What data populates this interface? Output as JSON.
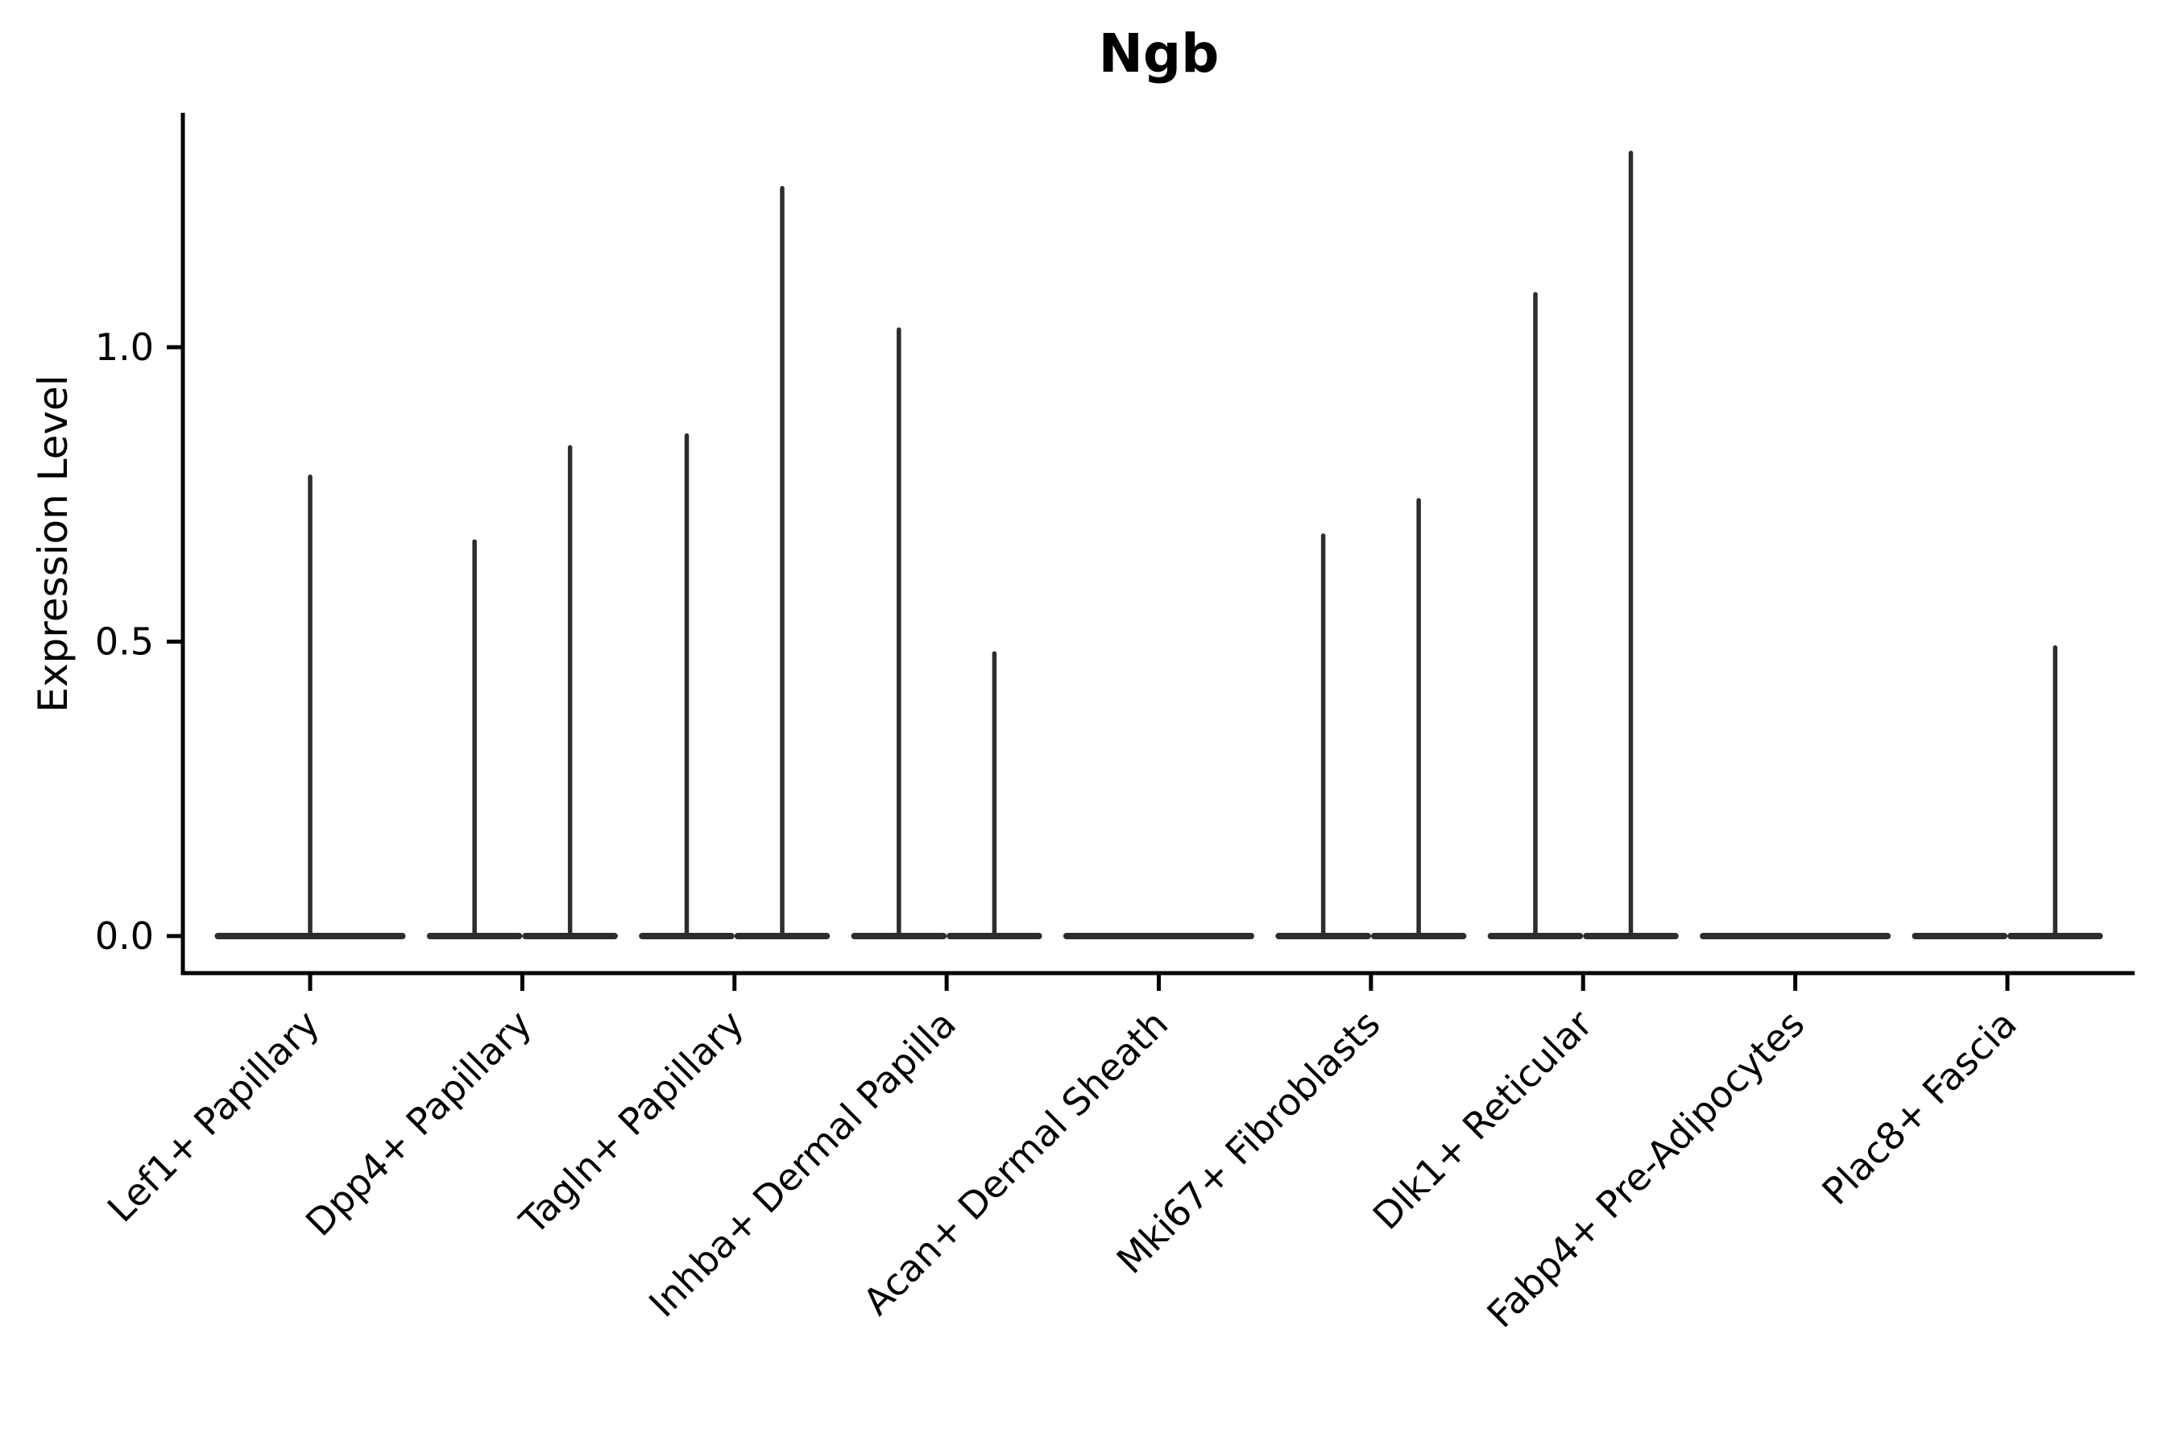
{
  "chart_data": {
    "type": "violin",
    "title": "Ngb",
    "xlabel": "",
    "ylabel": "Expression Level",
    "grid": false,
    "legend": "none",
    "background": "#ffffff",
    "axis_color": "#000000",
    "violin_color": "#2d2d2d",
    "yticks": [
      "0.0",
      "0.5",
      "1.0"
    ],
    "ytick_values": [
      0.0,
      0.5,
      1.0
    ],
    "ylim": [
      -0.07,
      1.4
    ],
    "categories": [
      "Lef1+ Papillary",
      "Dpp4+ Papillary",
      "Tagln+ Papillary",
      "Inhba+ Dermal Papilla",
      "Acan+ Dermal Sheath",
      "Mki67+ Fibroblasts",
      "Dlk1+ Reticular",
      "Fabp4+ Pre-Adipocytes",
      "Plac8+ Fascia"
    ],
    "series": [
      {
        "category": "Lef1+ Papillary",
        "violins": [
          {
            "position": "center",
            "max_expression": 0.78
          }
        ]
      },
      {
        "category": "Dpp4+ Papillary",
        "violins": [
          {
            "position": "left",
            "max_expression": 0.67
          },
          {
            "position": "right",
            "max_expression": 0.83
          }
        ]
      },
      {
        "category": "Tagln+ Papillary",
        "violins": [
          {
            "position": "left",
            "max_expression": 0.85
          },
          {
            "position": "right",
            "max_expression": 1.27
          }
        ]
      },
      {
        "category": "Inhba+ Dermal Papilla",
        "violins": [
          {
            "position": "left",
            "max_expression": 1.03
          },
          {
            "position": "right",
            "max_expression": 0.48
          }
        ]
      },
      {
        "category": "Acan+ Dermal Sheath",
        "violins": [
          {
            "position": "center",
            "max_expression": 0.0
          }
        ]
      },
      {
        "category": "Mki67+ Fibroblasts",
        "violins": [
          {
            "position": "left",
            "max_expression": 0.68
          },
          {
            "position": "right",
            "max_expression": 0.74
          }
        ]
      },
      {
        "category": "Dlk1+ Reticular",
        "violins": [
          {
            "position": "left",
            "max_expression": 1.09
          },
          {
            "position": "right",
            "max_expression": 1.33
          }
        ]
      },
      {
        "category": "Fabp4+ Pre-Adipocytes",
        "violins": [
          {
            "position": "center",
            "max_expression": 0.0
          }
        ]
      },
      {
        "category": "Plac8+ Fascia",
        "violins": [
          {
            "position": "left",
            "max_expression": 0.0
          },
          {
            "position": "right",
            "max_expression": 0.49
          }
        ]
      }
    ]
  }
}
